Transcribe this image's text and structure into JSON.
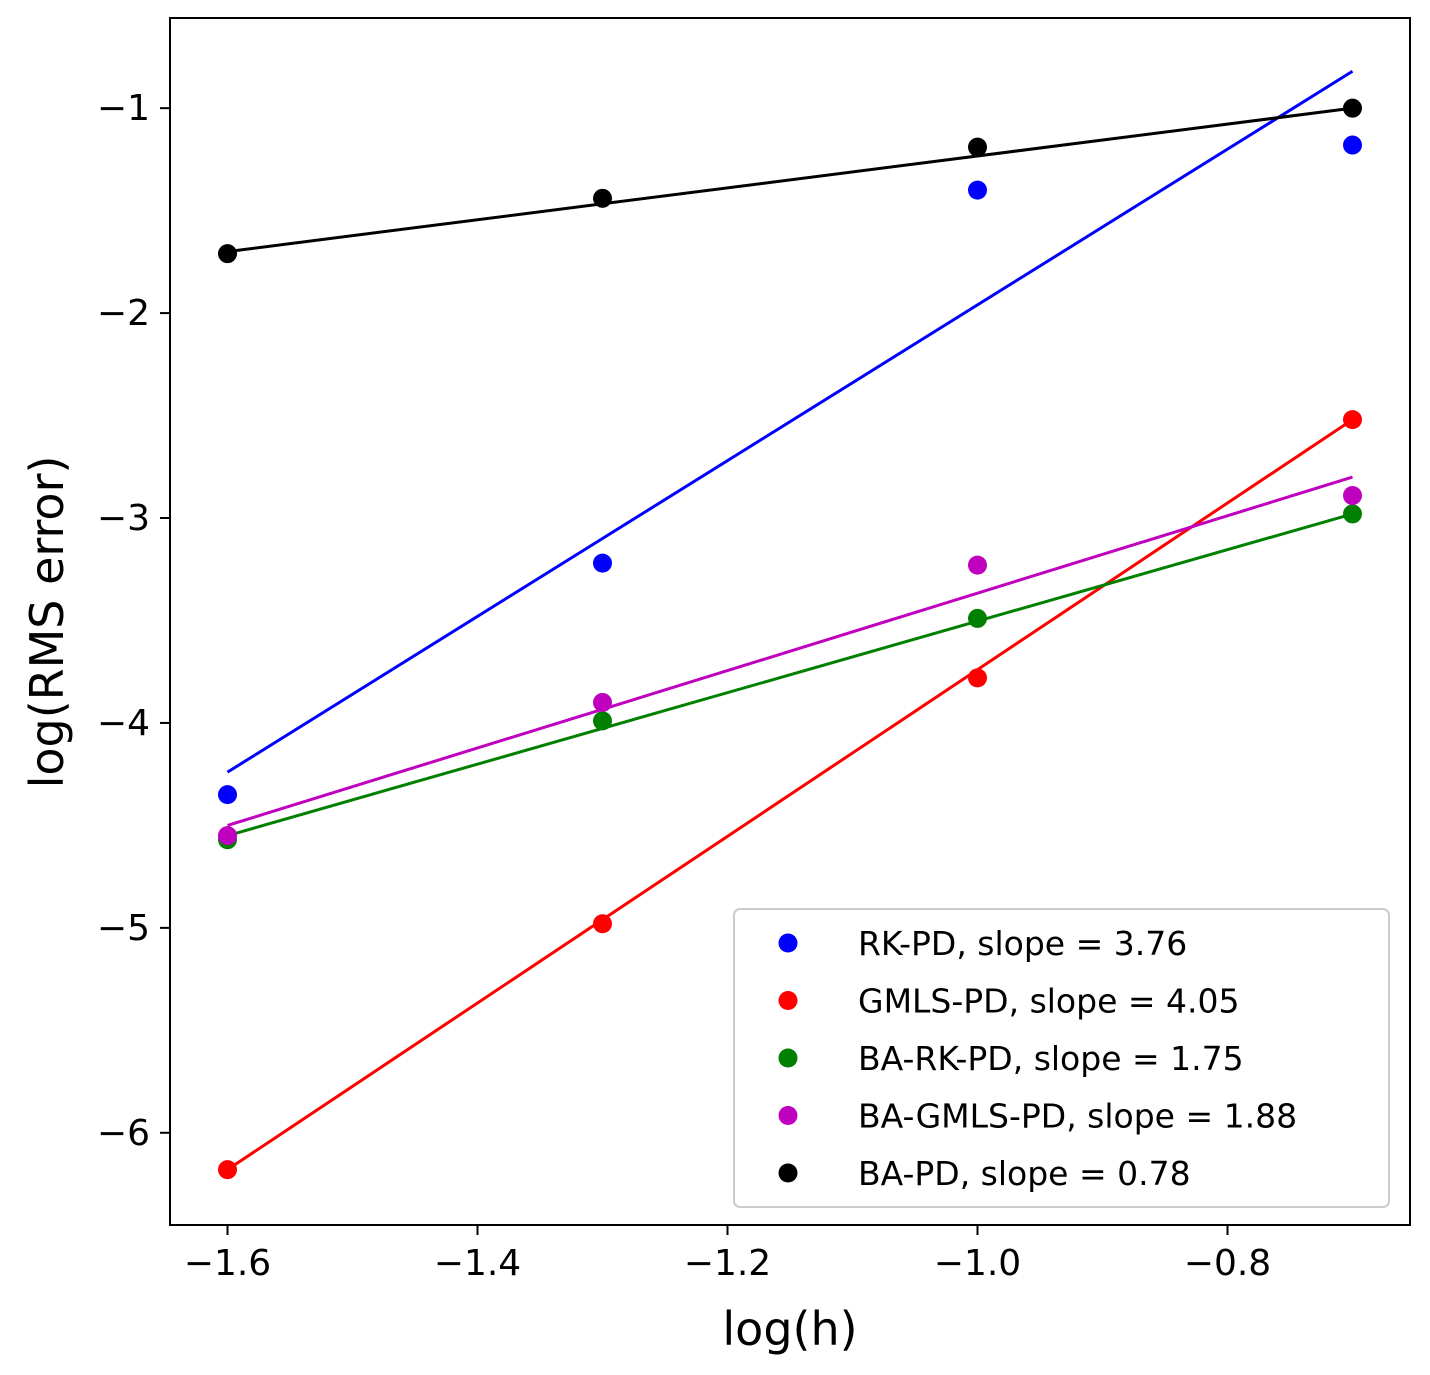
{
  "chart_data": {
    "type": "scatter",
    "title": "",
    "xlabel": "log(h)",
    "ylabel": "log(RMS error)",
    "xlim": [
      -1.646,
      -0.654
    ],
    "ylim": [
      -6.45,
      -0.56
    ],
    "xticks": [
      -1.6,
      -1.4,
      -1.2,
      -1.0,
      -0.8
    ],
    "xtick_labels": [
      "−1.6",
      "−1.4",
      "−1.2",
      "−1.0",
      "−0.8"
    ],
    "yticks": [
      -6,
      -5,
      -4,
      -3,
      -2,
      -1
    ],
    "ytick_labels": [
      "−6",
      "−5",
      "−4",
      "−3",
      "−2",
      "−1"
    ],
    "grid": false,
    "legend_position": "lower-right",
    "x": [
      -1.6,
      -1.3,
      -1.0,
      -0.7
    ],
    "series": [
      {
        "name": "RK-PD, slope = 3.76",
        "color": "#0000ff",
        "points": [
          -4.35,
          -3.22,
          -1.4,
          -1.18
        ],
        "fit_line": [
          [
            -1.6,
            -4.24
          ],
          [
            -0.7,
            -0.82
          ]
        ]
      },
      {
        "name": "GMLS-PD, slope = 4.05",
        "color": "#ff0000",
        "points": [
          -6.18,
          -4.98,
          -3.78,
          -2.52
        ],
        "fit_line": [
          [
            -1.6,
            -6.18
          ],
          [
            -0.7,
            -2.52
          ]
        ]
      },
      {
        "name": "BA-RK-PD, slope = 1.75",
        "color": "#008000",
        "points": [
          -4.57,
          -3.99,
          -3.49,
          -2.98
        ],
        "fit_line": [
          [
            -1.6,
            -4.55
          ],
          [
            -0.7,
            -2.98
          ]
        ]
      },
      {
        "name": "BA-GMLS-PD, slope = 1.88",
        "color": "#bf00bf",
        "points": [
          -4.55,
          -3.9,
          -3.23,
          -2.89
        ],
        "fit_line": [
          [
            -1.6,
            -4.5
          ],
          [
            -0.7,
            -2.8
          ]
        ]
      },
      {
        "name": "BA-PD, slope = 0.78",
        "color": "#000000",
        "points": [
          -1.71,
          -1.44,
          -1.19,
          -1.0
        ],
        "fit_line": [
          [
            -1.6,
            -1.7
          ],
          [
            -0.7,
            -1.0
          ]
        ]
      }
    ]
  }
}
